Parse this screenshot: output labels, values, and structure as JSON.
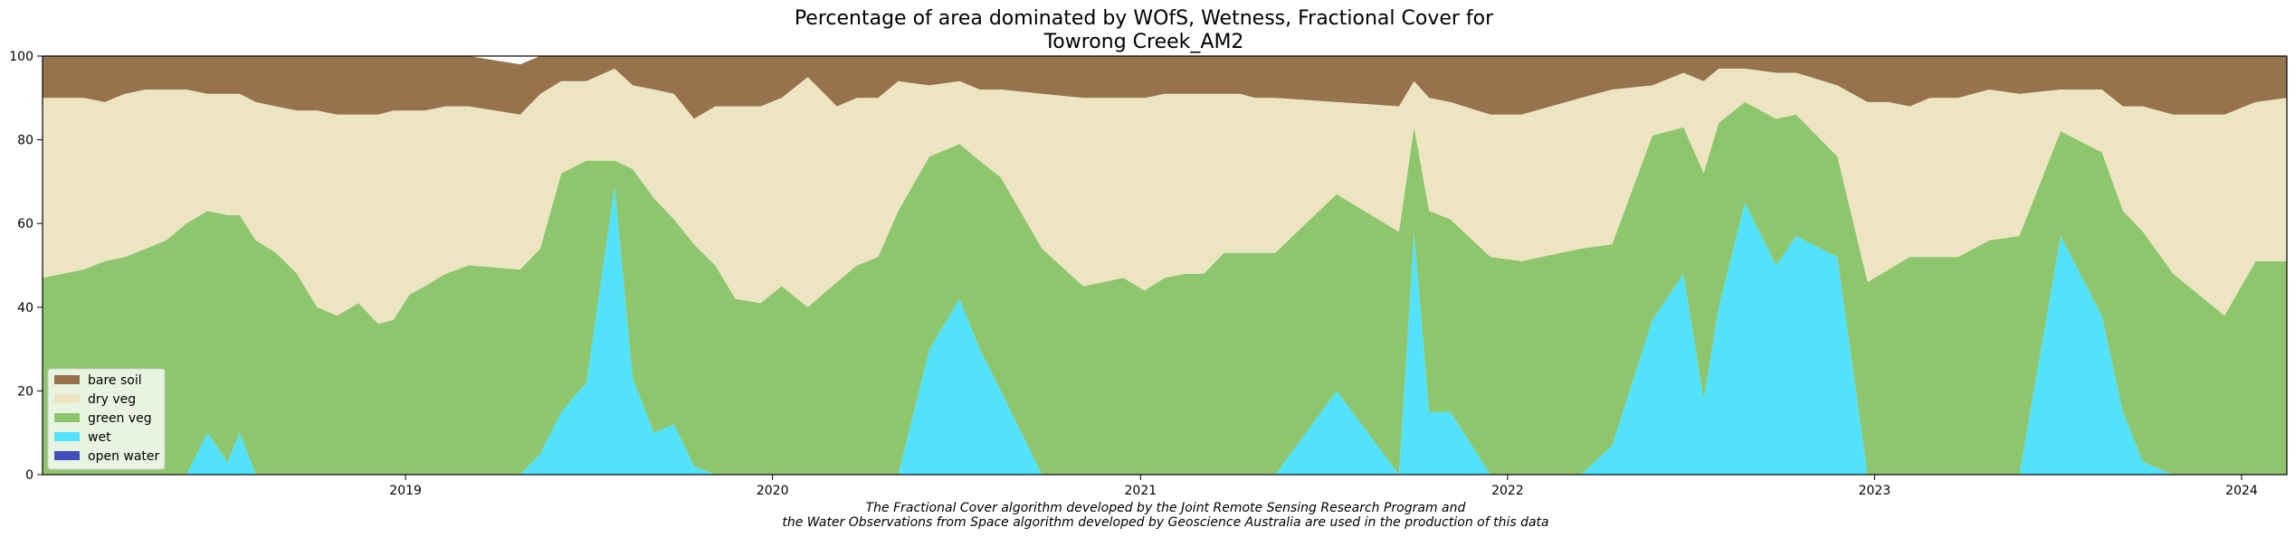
{
  "chart_data": {
    "type": "area",
    "stacked": true,
    "title": "Percentage of area dominated by WOfS, Wetness, Fractional Cover for",
    "subtitle": "Towrong Creek_AM2",
    "caption_line1": "The Fractional Cover algorithm developed by the Joint Remote Sensing Research Program and",
    "caption_line2": "the Water Observations from Space algorithm developed by Geoscience Australia are used in the production of this data",
    "xlim": [
      "2018-01-05",
      "2024-02-15"
    ],
    "ylim": [
      0,
      100
    ],
    "x_ticks": [
      "2019",
      "2020",
      "2021",
      "2022",
      "2023",
      "2024"
    ],
    "y_ticks": [
      "0",
      "20",
      "40",
      "60",
      "80",
      "100"
    ],
    "legend_position": "lower-left",
    "grid": false,
    "colors": {
      "open_water": "#4050b8",
      "wet": "#52e2fb",
      "green_veg": "#8dc66c",
      "dry_veg": "#ede4c2",
      "bare_soil": "#96734c"
    },
    "legend": [
      {
        "label": "bare soil",
        "color": "#96734c"
      },
      {
        "label": "dry veg",
        "color": "#ede4c2"
      },
      {
        "label": "green veg",
        "color": "#8dc66c"
      },
      {
        "label": "wet",
        "color": "#52e2fb"
      },
      {
        "label": "open water",
        "color": "#4050b8"
      }
    ],
    "x": [
      "2018-01-05",
      "2018-01-25",
      "2018-02-15",
      "2018-03-08",
      "2018-03-28",
      "2018-04-18",
      "2018-05-08",
      "2018-05-28",
      "2018-06-18",
      "2018-07-08",
      "2018-07-20",
      "2018-08-05",
      "2018-08-25",
      "2018-09-15",
      "2018-10-05",
      "2018-10-25",
      "2018-11-15",
      "2018-12-05",
      "2018-12-20",
      "2019-01-05",
      "2019-01-20",
      "2019-02-10",
      "2019-03-05",
      "2019-04-25",
      "2019-05-15",
      "2019-06-05",
      "2019-06-30",
      "2019-07-28",
      "2019-08-15",
      "2019-09-05",
      "2019-09-25",
      "2019-10-15",
      "2019-11-05",
      "2019-11-25",
      "2019-12-20",
      "2020-01-10",
      "2020-02-05",
      "2020-03-05",
      "2020-03-25",
      "2020-04-15",
      "2020-05-05",
      "2020-06-05",
      "2020-07-05",
      "2020-07-25",
      "2020-08-15",
      "2020-09-25",
      "2020-11-05",
      "2020-12-15",
      "2021-01-05",
      "2021-01-25",
      "2021-02-15",
      "2021-03-05",
      "2021-03-25",
      "2021-04-10",
      "2021-04-25",
      "2021-05-15",
      "2021-07-15",
      "2021-09-15",
      "2021-09-30",
      "2021-10-15",
      "2021-11-05",
      "2021-12-15",
      "2022-01-15",
      "2022-03-15",
      "2022-04-15",
      "2022-05-25",
      "2022-06-25",
      "2022-07-15",
      "2022-07-30",
      "2022-08-25",
      "2022-09-25",
      "2022-10-15",
      "2022-11-25",
      "2022-12-25",
      "2023-01-15",
      "2023-02-05",
      "2023-02-25",
      "2023-03-25",
      "2023-04-25",
      "2023-05-25",
      "2023-07-05",
      "2023-08-15",
      "2023-09-05",
      "2023-09-25",
      "2023-10-25",
      "2023-12-15",
      "2024-01-15",
      "2024-02-15"
    ],
    "series": [
      {
        "name": "open water",
        "values": [
          0,
          0,
          0,
          0,
          0,
          0,
          0,
          0,
          0,
          0,
          0,
          0,
          0,
          0,
          0,
          0,
          0,
          0,
          0,
          0,
          0,
          0,
          0,
          0,
          0,
          0,
          0,
          0,
          0,
          0,
          0,
          0,
          0,
          0,
          0,
          0,
          0,
          0,
          0,
          0,
          0,
          0,
          0,
          0,
          0,
          0,
          0,
          0,
          0,
          0,
          0,
          0,
          0,
          0,
          0,
          0,
          0,
          0,
          0,
          0,
          0,
          0,
          0,
          0,
          0,
          0,
          0,
          0,
          0,
          0,
          0,
          0,
          0,
          0,
          0,
          0,
          0,
          0,
          0,
          0,
          0,
          0,
          0,
          0,
          0,
          0,
          0,
          0
        ]
      },
      {
        "name": "wet",
        "values": [
          0,
          0,
          0,
          0,
          0,
          0,
          0,
          0,
          10,
          3,
          10,
          0,
          0,
          0,
          0,
          0,
          0,
          0,
          0,
          0,
          0,
          0,
          0,
          0,
          5,
          15,
          22,
          69,
          23,
          10,
          12,
          2,
          0,
          0,
          0,
          0,
          0,
          0,
          0,
          0,
          0,
          30,
          42,
          30,
          20,
          0,
          0,
          0,
          0,
          0,
          0,
          0,
          0,
          0,
          0,
          0,
          20,
          0,
          58,
          15,
          15,
          0,
          0,
          0,
          7,
          37,
          48,
          18,
          40,
          65,
          50,
          57,
          52,
          0,
          0,
          0,
          0,
          0,
          0,
          0,
          57,
          38,
          15,
          3,
          0,
          0,
          0,
          0
        ]
      },
      {
        "name": "green veg",
        "values": [
          47,
          48,
          49,
          51,
          52,
          54,
          56,
          60,
          53,
          59,
          52,
          56,
          53,
          48,
          40,
          38,
          41,
          36,
          37,
          43,
          45,
          48,
          50,
          49,
          49,
          57,
          53,
          6,
          50,
          56,
          49,
          53,
          50,
          42,
          41,
          45,
          40,
          46,
          50,
          52,
          63,
          46,
          37,
          45,
          51,
          54,
          45,
          47,
          44,
          47,
          48,
          48,
          53,
          53,
          53,
          53,
          47,
          58,
          25,
          48,
          46,
          52,
          51,
          54,
          48,
          44,
          35,
          54,
          44,
          24,
          35,
          29,
          24,
          46,
          49,
          52,
          52,
          52,
          56,
          57,
          25,
          39,
          48,
          55,
          48,
          38,
          51,
          51
        ]
      },
      {
        "name": "dry veg",
        "values": [
          43,
          42,
          41,
          38,
          39,
          38,
          36,
          32,
          28,
          29,
          29,
          33,
          35,
          39,
          47,
          48,
          45,
          50,
          50,
          44,
          42,
          40,
          38,
          37,
          37,
          22,
          19,
          22,
          20,
          26,
          30,
          30,
          38,
          46,
          47,
          45,
          55,
          42,
          40,
          38,
          31,
          17,
          15,
          17,
          21,
          37,
          45,
          43,
          46,
          44,
          43,
          43,
          38,
          38,
          37,
          37,
          22,
          30,
          11,
          27,
          28,
          34,
          35,
          36,
          37,
          12,
          13,
          22,
          13,
          8,
          11,
          10,
          17,
          43,
          40,
          36,
          38,
          38,
          36,
          34,
          10,
          15,
          25,
          30,
          38,
          48,
          38,
          39
        ]
      },
      {
        "name": "bare soil",
        "values": [
          10,
          10,
          10,
          11,
          9,
          8,
          8,
          8,
          9,
          9,
          9,
          11,
          12,
          13,
          13,
          14,
          14,
          14,
          13,
          13,
          13,
          12,
          12,
          12,
          9,
          6,
          6,
          3,
          7,
          8,
          9,
          15,
          12,
          12,
          12,
          10,
          5,
          12,
          10,
          10,
          6,
          7,
          6,
          8,
          8,
          9,
          10,
          10,
          10,
          9,
          9,
          9,
          9,
          9,
          10,
          10,
          11,
          12,
          6,
          10,
          11,
          14,
          14,
          10,
          8,
          7,
          4,
          6,
          3,
          3,
          4,
          4,
          7,
          11,
          11,
          12,
          10,
          10,
          8,
          9,
          8,
          8,
          12,
          12,
          14,
          14,
          11,
          10
        ]
      }
    ]
  }
}
